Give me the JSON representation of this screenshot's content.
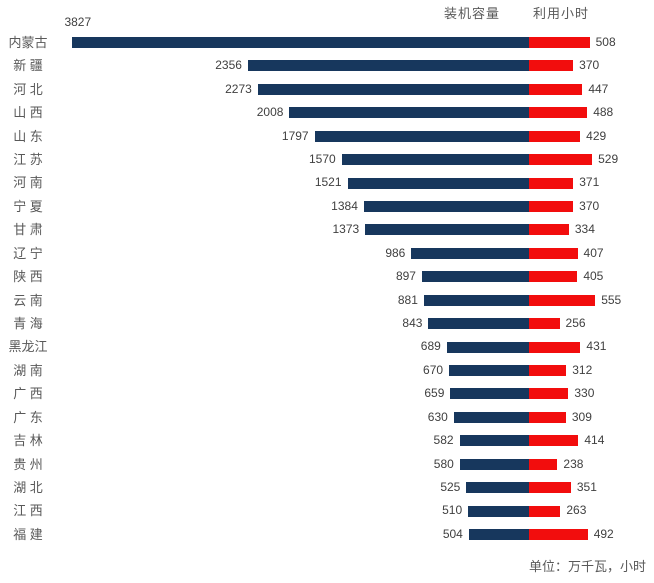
{
  "legend": {
    "capacity": "装机容量",
    "hours": "利用小时"
  },
  "footer": {
    "unit": "单位：万千瓦，小时"
  },
  "colors": {
    "capacity_bar": "#17375D",
    "hours_bar": "#F20D0D",
    "category_text": "#595959",
    "value_text": "#404040"
  },
  "chart_data": {
    "type": "bar",
    "subtype": "diverging-horizontal-stacked",
    "title": "",
    "xlabel": "",
    "ylabel": "",
    "unit_note": "单位：万千瓦，小时",
    "legend_position": "top-right",
    "grid": false,
    "categories": [
      "内蒙古",
      "新 疆",
      "河 北",
      "山 西",
      "山 东",
      "江 苏",
      "河 南",
      "宁 夏",
      "甘 肃",
      "辽 宁",
      "陕 西",
      "云 南",
      "青 海",
      "黑龙江",
      "湖 南",
      "广 西",
      "广 东",
      "吉 林",
      "贵 州",
      "湖 北",
      "江 西",
      "福 建"
    ],
    "series": [
      {
        "name": "装机容量",
        "direction": "left",
        "color": "#17375D",
        "values": [
          3827,
          2356,
          2273,
          2008,
          1797,
          1570,
          1521,
          1384,
          1373,
          986,
          897,
          881,
          843,
          689,
          670,
          659,
          630,
          582,
          580,
          525,
          510,
          504
        ]
      },
      {
        "name": "利用小时",
        "direction": "right",
        "color": "#F20D0D",
        "values": [
          508,
          370,
          447,
          488,
          429,
          529,
          371,
          370,
          334,
          407,
          405,
          555,
          256,
          431,
          312,
          330,
          309,
          414,
          238,
          351,
          263,
          492
        ]
      }
    ]
  }
}
